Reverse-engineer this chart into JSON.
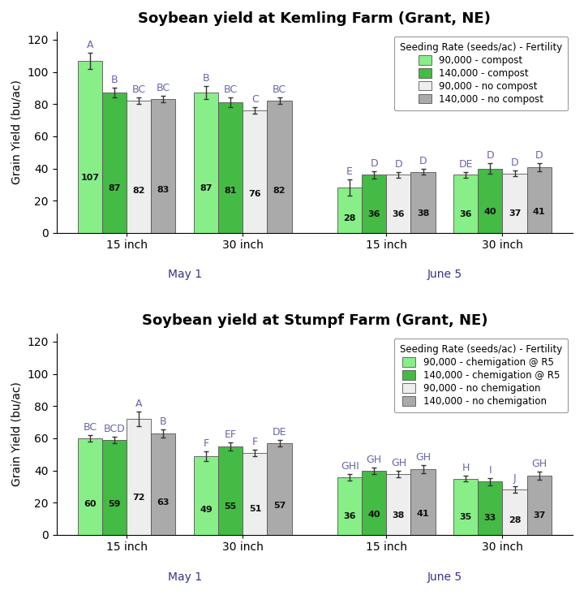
{
  "chart1": {
    "title": "Soybean yield at Kemling Farm (Grant, NE)",
    "ylabel": "Grain Yield (bu/ac)",
    "legend_title": "Seeding Rate (seeds/ac) - Fertility",
    "legend_labels": [
      "90,000 - compost",
      "140,000 - compost",
      "90,000 - no compost",
      "140,000 - no compost"
    ],
    "groups": [
      "15 inch",
      "30 inch",
      "15 inch",
      "30 inch"
    ],
    "planting_dates": [
      "May 1",
      "June 5"
    ],
    "values": [
      [
        107,
        87,
        82,
        83
      ],
      [
        87,
        81,
        76,
        82
      ],
      [
        28,
        36,
        36,
        38
      ],
      [
        36,
        40,
        37,
        41
      ]
    ],
    "errors": [
      [
        5.0,
        3.0,
        2.0,
        2.0
      ],
      [
        4.0,
        3.0,
        2.0,
        2.0
      ],
      [
        5.0,
        2.5,
        2.0,
        2.0
      ],
      [
        2.0,
        3.5,
        2.0,
        2.5
      ]
    ],
    "letters": [
      [
        "A",
        "B",
        "BC",
        "BC"
      ],
      [
        "B",
        "BC",
        "C",
        "BC"
      ],
      [
        "E",
        "D",
        "D",
        "D"
      ],
      [
        "DE",
        "D",
        "D",
        "D"
      ]
    ],
    "ylim": [
      0,
      125
    ],
    "yticks": [
      0,
      20,
      40,
      60,
      80,
      100,
      120
    ]
  },
  "chart2": {
    "title": "Soybean yield at Stumpf Farm (Grant, NE)",
    "ylabel": "Grain Yield (bu/ac)",
    "legend_title": "Seeding Rate (seeds/ac) - Fertility",
    "legend_labels": [
      "90,000 - chemigation @ R5",
      "140,000 - chemigation @ R5",
      "90,000 - no chemigation",
      "140,000 - no chemigation"
    ],
    "groups": [
      "15 inch",
      "30 inch",
      "15 inch",
      "30 inch"
    ],
    "planting_dates": [
      "May 1",
      "June 5"
    ],
    "values": [
      [
        60,
        59,
        72,
        63
      ],
      [
        49,
        55,
        51,
        57
      ],
      [
        36,
        40,
        38,
        41
      ],
      [
        35,
        33,
        28,
        37
      ]
    ],
    "errors": [
      [
        2.0,
        2.0,
        4.5,
        2.5
      ],
      [
        3.0,
        2.5,
        2.0,
        2.0
      ],
      [
        2.0,
        2.0,
        2.0,
        2.5
      ],
      [
        2.0,
        2.5,
        2.0,
        2.5
      ]
    ],
    "letters": [
      [
        "BC",
        "BCD",
        "A",
        "B"
      ],
      [
        "F",
        "EF",
        "F",
        "DE"
      ],
      [
        "GHI",
        "GH",
        "GH",
        "GH"
      ],
      [
        "H",
        "I",
        "J",
        "GH"
      ]
    ],
    "ylim": [
      0,
      125
    ],
    "yticks": [
      0,
      20,
      40,
      60,
      80,
      100,
      120
    ]
  },
  "bar_colors": [
    "#88ee88",
    "#44bb44",
    "#eeeeee",
    "#aaaaaa"
  ],
  "bar_edgecolor": "#555555",
  "bar_width": 0.16,
  "background_color": "#ffffff",
  "title_fontsize": 13,
  "axis_label_fontsize": 10,
  "tick_fontsize": 10,
  "legend_fontsize": 8.5,
  "value_fontsize": 8,
  "letter_fontsize": 9,
  "date_label_color": "#333388",
  "letter_color": "#6666aa",
  "group_xtick_fontsize": 10,
  "date_xtick_fontsize": 10
}
